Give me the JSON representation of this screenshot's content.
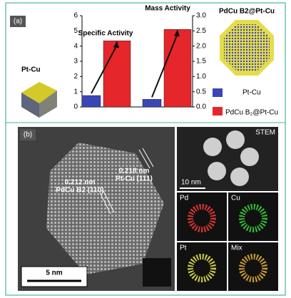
{
  "panel_a_label": "(a)",
  "panel_b_label": "(b)",
  "chart_data": {
    "type": "bar",
    "categories": [
      "Specific Activity",
      "Mass Activity"
    ],
    "category_axes": [
      "y",
      "y2"
    ],
    "series": [
      {
        "name": "Pt-Cu",
        "color": "#3a46b8",
        "values": [
          0.75,
          0.25
        ]
      },
      {
        "name": "PdCu B₂@Pt-Cu",
        "color": "#e5262b",
        "values": [
          4.35,
          2.55
        ]
      }
    ],
    "ylim": [
      0,
      6
    ],
    "yticks": [
      0,
      1,
      2,
      3,
      4,
      5,
      6
    ],
    "y2lim": [
      0,
      3
    ],
    "y2ticks": [
      {
        "value": 0,
        "label": "0.0"
      },
      0.5,
      {
        "value": 1,
        "label": "1.0"
      },
      1.5,
      {
        "value": 2,
        "label": "2.0"
      },
      2.5,
      {
        "value": 3,
        "label": "3.0"
      }
    ],
    "legend": "right"
  },
  "images": {
    "pt_cu_label": "Pt-Cu",
    "core_shell_label": "PdCu B2@Pt-Cu"
  },
  "panel_b": {
    "stem_label": "STEM",
    "stem_scale": "10 nm",
    "main_scale": "5 nm",
    "spacing_1": "0.212 nm",
    "plane_1": "PdCu B2 (110)",
    "spacing_2": "0.218 nm",
    "plane_2": "Pt-Cu (111)",
    "maps": [
      "Pd",
      "Cu",
      "Pt",
      "Mix"
    ]
  }
}
